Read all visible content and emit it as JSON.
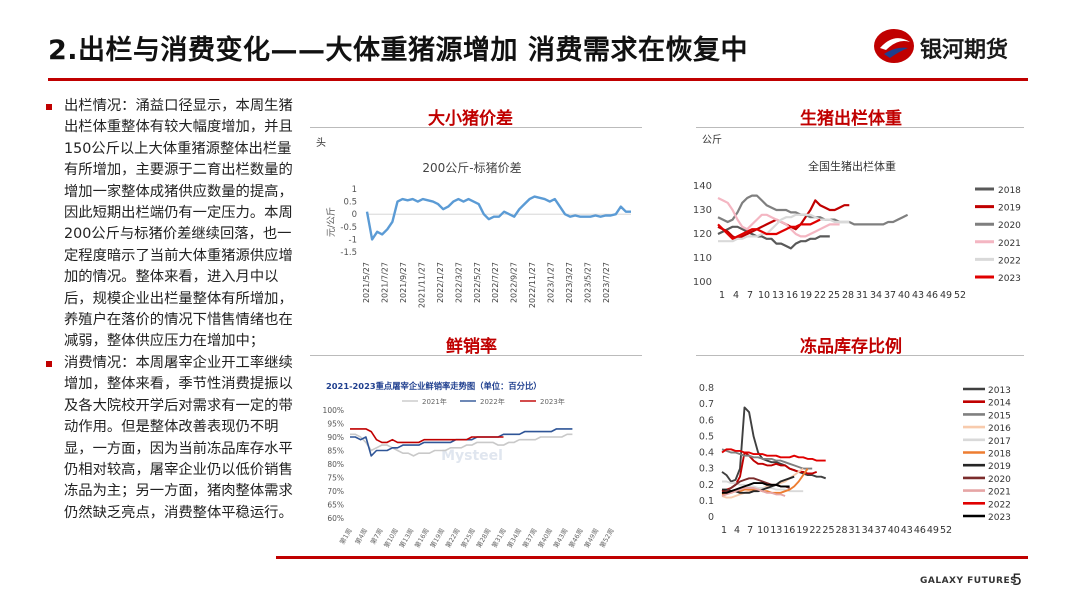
{
  "header": {
    "title": "2.出栏与消费变化——大体重猪源增加 消费需求在恢复中",
    "logo_text": "银河期货",
    "brand_color": "#c00000"
  },
  "left_text": {
    "p1": "出栏情况：涌益口径显示，本周生猪出栏体重整体有较大幅度增加，并且150公斤以上大体重猪源整体出栏量有所增加，主要源于二育出栏数量的增加一家整体成猪供应数量的提高，因此短期出栏端仍有一定压力。本周200公斤与标猪价差继续回落，也一定程度暗示了当前大体重猪源供应增加的情况。整体来看，进入月中以后，规模企业出栏量整体有所增加，养殖户在落价的情况下惜售情绪也在减弱，整体供应压力在增加中；",
    "p2": "消费情况：本周屠宰企业开工率继续增加，整体来看，季节性消费提振以及各大院校开学后对需求有一定的带动作用。但是整体改善表现仍不明显，一方面，因为当前冻品库存水平仍相对较高，屠宰企业仍以低价销售冻品为主；另一方面，猪肉整体需求仍然缺乏亮点，消费整体平稳运行。"
  },
  "footer": {
    "brand": "GALAXY FUTURES",
    "page": "5"
  },
  "chart_data": [
    {
      "type": "line",
      "panel_title": "大小猪价差",
      "unit": "头",
      "title": "200公斤-标猪价差",
      "ylabel": "元/公斤",
      "ylim": [
        -1.5,
        1
      ],
      "yticks": [
        "1",
        "0.5",
        "0",
        "-0.5",
        "-1",
        "-1.5"
      ],
      "x_tick_labels": [
        "2021/5/27",
        "2021/7/27",
        "2021/9/27",
        "2021/11/27",
        "2022/1/27",
        "2022/3/27",
        "2022/5/27",
        "2022/7/27",
        "2022/9/27",
        "2022/11/27",
        "2023/1/27",
        "2023/3/27",
        "2023/5/27",
        "2023/7/27"
      ],
      "color": "#5b9bd5",
      "series": [
        {
          "values": [
            0.1,
            -1.0,
            -0.7,
            -0.8,
            -0.6,
            -0.3,
            0.5,
            0.6,
            0.55,
            0.6,
            0.5,
            0.6,
            0.55,
            0.5,
            0.4,
            0.2,
            0.3,
            0.5,
            0.6,
            0.5,
            0.6,
            0.5,
            0.4,
            0.0,
            -0.2,
            -0.1,
            -0.1,
            0.1,
            0.0,
            -0.1,
            0.2,
            0.4,
            0.6,
            0.7,
            0.65,
            0.6,
            0.5,
            0.6,
            0.3,
            0.0,
            -0.1,
            -0.05,
            -0.1,
            -0.1,
            -0.1,
            -0.05,
            -0.1,
            -0.05,
            -0.05,
            0.0,
            0.3,
            0.1,
            0.1
          ]
        }
      ]
    },
    {
      "type": "line",
      "panel_title": "生猪出栏体重",
      "unit": "公斤",
      "title": "全国生猪出栏体重",
      "ylim": [
        100,
        140
      ],
      "yticks": [
        "140",
        "130",
        "120",
        "110",
        "100"
      ],
      "x_tick_labels": [
        "1",
        "4",
        "7",
        "10",
        "13",
        "16",
        "19",
        "22",
        "25",
        "28",
        "31",
        "34",
        "37",
        "40",
        "43",
        "46",
        "49",
        "52"
      ],
      "series": [
        {
          "name": "2018",
          "color": "#595959",
          "values": [
            120,
            121,
            122,
            123,
            123,
            122,
            121,
            120,
            119,
            119,
            118,
            118,
            116,
            116,
            115,
            114,
            116,
            117,
            117,
            118,
            118,
            119,
            119,
            119
          ]
        },
        {
          "name": "2019",
          "color": "#c00000",
          "values": [
            123,
            122,
            121,
            119,
            118,
            119,
            120,
            121,
            122,
            123,
            124,
            125,
            126,
            125,
            124,
            123,
            122,
            124,
            127,
            130,
            134,
            132,
            131,
            130,
            130,
            131,
            132,
            132
          ]
        },
        {
          "name": "2020",
          "color": "#7f7f7f",
          "values": [
            127,
            126,
            125,
            126,
            129,
            133,
            135,
            136,
            136,
            134,
            132,
            131,
            130,
            130,
            130,
            129,
            129,
            128,
            128,
            127,
            127,
            127,
            126,
            126,
            126,
            125,
            125,
            125,
            124,
            124,
            124,
            124,
            124,
            124,
            124,
            125,
            125,
            126,
            127,
            128
          ]
        },
        {
          "name": "2021",
          "color": "#f4b6c2",
          "values": [
            135,
            134,
            133,
            130,
            126,
            123,
            122,
            124,
            126,
            128,
            128,
            127,
            126,
            125,
            124,
            122,
            120,
            119,
            119,
            120,
            121,
            122,
            123,
            124,
            124,
            124
          ]
        },
        {
          "name": "2022",
          "color": "#d9d9d9",
          "values": [
            117,
            117,
            117,
            117,
            118,
            118,
            119,
            119,
            119,
            120,
            120,
            122,
            124,
            126,
            127,
            127,
            128,
            128,
            128,
            128,
            127,
            126,
            126,
            126,
            125,
            125,
            125,
            125
          ]
        },
        {
          "name": "2023",
          "color": "#e00000",
          "values": [
            124,
            122,
            120,
            118,
            119,
            120,
            121,
            122,
            122,
            121,
            120,
            120,
            120,
            121,
            122,
            123,
            123,
            124,
            124,
            124,
            125,
            126
          ]
        }
      ]
    },
    {
      "type": "line",
      "panel_title": "鲜销率",
      "title": "2021-2023重点屠宰企业鲜销率走势图（单位：百分比）",
      "ylim": [
        60,
        100
      ],
      "yticks": [
        "100%",
        "95%",
        "90%",
        "85%",
        "80%",
        "75%",
        "70%",
        "65%",
        "60%"
      ],
      "x_tick_labels": [
        "第1周",
        "第4周",
        "第7周",
        "第10周",
        "第13周",
        "第16周",
        "第19周",
        "第22周",
        "第25周",
        "第28周",
        "第31周",
        "第34周",
        "第37周",
        "第40周",
        "第43周",
        "第46周",
        "第49周",
        "第52周"
      ],
      "watermark": "Mysteel",
      "series": [
        {
          "name": "2021年",
          "color": "#c9c9c9",
          "values": [
            91,
            91,
            90,
            88,
            85,
            86,
            87,
            87,
            86,
            85,
            84,
            84,
            83,
            84,
            84,
            84,
            85,
            85,
            85,
            86,
            86,
            86,
            87,
            87,
            88,
            88,
            88,
            88,
            87,
            87,
            88,
            88,
            89,
            89,
            89,
            89,
            90,
            90,
            90,
            90,
            90,
            91,
            91
          ]
        },
        {
          "name": "2022年",
          "color": "#2f5597",
          "values": [
            90,
            90,
            89,
            90,
            83,
            85,
            85,
            85,
            86,
            86,
            87,
            87,
            87,
            87,
            88,
            88,
            88,
            88,
            88,
            88,
            89,
            89,
            89,
            89,
            90,
            90,
            90,
            90,
            90,
            91,
            91,
            91,
            91,
            92,
            92,
            92,
            92,
            92,
            92,
            93,
            93,
            93,
            93
          ]
        },
        {
          "name": "2023年",
          "color": "#c00000",
          "values": [
            93,
            93,
            93,
            93,
            92,
            89,
            88,
            88,
            89,
            88,
            88,
            88,
            88,
            88,
            89,
            89,
            89,
            89,
            89,
            89,
            89,
            89,
            89,
            90,
            90,
            90,
            90,
            90,
            90,
            90
          ]
        }
      ]
    },
    {
      "type": "line",
      "panel_title": "冻品库存比例",
      "ylim": [
        0,
        0.8
      ],
      "yticks": [
        "0.8",
        "0.7",
        "0.6",
        "0.5",
        "0.4",
        "0.3",
        "0.2",
        "0.1",
        "0"
      ],
      "x_tick_labels": [
        "1",
        "4",
        "7",
        "10",
        "13",
        "16",
        "19",
        "22",
        "25",
        "28",
        "31",
        "34",
        "37",
        "40",
        "43",
        "46",
        "49",
        "52"
      ],
      "series": [
        {
          "name": "2013",
          "color": "#404040",
          "values": [
            0.28,
            0.26,
            0.22,
            0.23,
            0.3,
            0.68,
            0.65,
            0.5,
            0.4,
            0.36,
            0.35,
            0.34,
            0.34,
            0.33,
            0.32,
            0.3,
            0.29,
            0.28,
            0.27,
            0.26,
            0.26,
            0.25,
            0.25,
            0.24
          ]
        },
        {
          "name": "2014",
          "color": "#c00000",
          "values": [
            0.16,
            0.17,
            0.18,
            0.2,
            0.25,
            0.4,
            0.38,
            0.35,
            0.33,
            0.33,
            0.32,
            0.32,
            0.33,
            0.32,
            0.32,
            0.3,
            0.29,
            0.28,
            0.28,
            0.27,
            0.27,
            0.28
          ]
        },
        {
          "name": "2015",
          "color": "#808080",
          "values": [
            0.42,
            0.41,
            0.4,
            0.4,
            0.39,
            0.38,
            0.38,
            0.37,
            0.37,
            0.36,
            0.36,
            0.36,
            0.35,
            0.35,
            0.34,
            0.33,
            0.32,
            0.31,
            0.3,
            0.3,
            0.3
          ]
        },
        {
          "name": "2016",
          "color": "#f8cbad",
          "values": [
            0.13,
            0.12,
            0.12,
            0.13,
            0.14,
            0.15,
            0.16,
            0.17,
            0.17,
            0.18,
            0.19,
            0.2,
            0.2,
            0.21,
            0.22,
            0.24,
            0.26,
            0.28,
            0.3
          ]
        },
        {
          "name": "2017",
          "color": "#d9d9d9",
          "values": [
            0.22,
            0.22,
            0.21,
            0.21,
            0.2,
            0.2,
            0.19,
            0.19,
            0.18,
            0.18,
            0.18,
            0.18,
            0.17,
            0.17,
            0.17,
            0.16,
            0.16,
            0.16,
            0.16
          ]
        },
        {
          "name": "2018",
          "color": "#ed7d31",
          "values": [
            0.14,
            0.15,
            0.15,
            0.16,
            0.16,
            0.17,
            0.17,
            0.17,
            0.17,
            0.16,
            0.16,
            0.15,
            0.15,
            0.15,
            0.16,
            0.17,
            0.19,
            0.22,
            0.26,
            0.3
          ]
        },
        {
          "name": "2019",
          "color": "#262626",
          "values": [
            0.17,
            0.17,
            0.16,
            0.16,
            0.15,
            0.15,
            0.15,
            0.16,
            0.16,
            0.17,
            0.18,
            0.19,
            0.2,
            0.22,
            0.23,
            0.24,
            0.25
          ]
        },
        {
          "name": "2020",
          "color": "#7b2c2c",
          "values": [
            0.15,
            0.16,
            0.18,
            0.2,
            0.22,
            0.23,
            0.24,
            0.24,
            0.23,
            0.22,
            0.21,
            0.2,
            0.2,
            0.19,
            0.19,
            0.18
          ]
        },
        {
          "name": "2021",
          "color": "#e6a5a5",
          "values": [
            0.13,
            0.14,
            0.15,
            0.16,
            0.17,
            0.18,
            0.18,
            0.18,
            0.17,
            0.16,
            0.15,
            0.15,
            0.14,
            0.14,
            0.13
          ]
        },
        {
          "name": "2022",
          "color": "#e00000",
          "values": [
            0.4,
            0.42,
            0.42,
            0.41,
            0.41,
            0.4,
            0.4,
            0.39,
            0.39,
            0.39,
            0.38,
            0.38,
            0.38,
            0.37,
            0.37,
            0.37,
            0.38,
            0.37,
            0.37,
            0.36,
            0.36,
            0.35,
            0.35,
            0.35
          ]
        },
        {
          "name": "2023",
          "color": "#000000",
          "values": [
            0.15,
            0.15,
            0.16,
            0.17,
            0.18,
            0.19,
            0.2,
            0.21,
            0.21,
            0.21,
            0.2,
            0.2,
            0.2,
            0.19,
            0.19,
            0.19
          ]
        }
      ]
    }
  ]
}
